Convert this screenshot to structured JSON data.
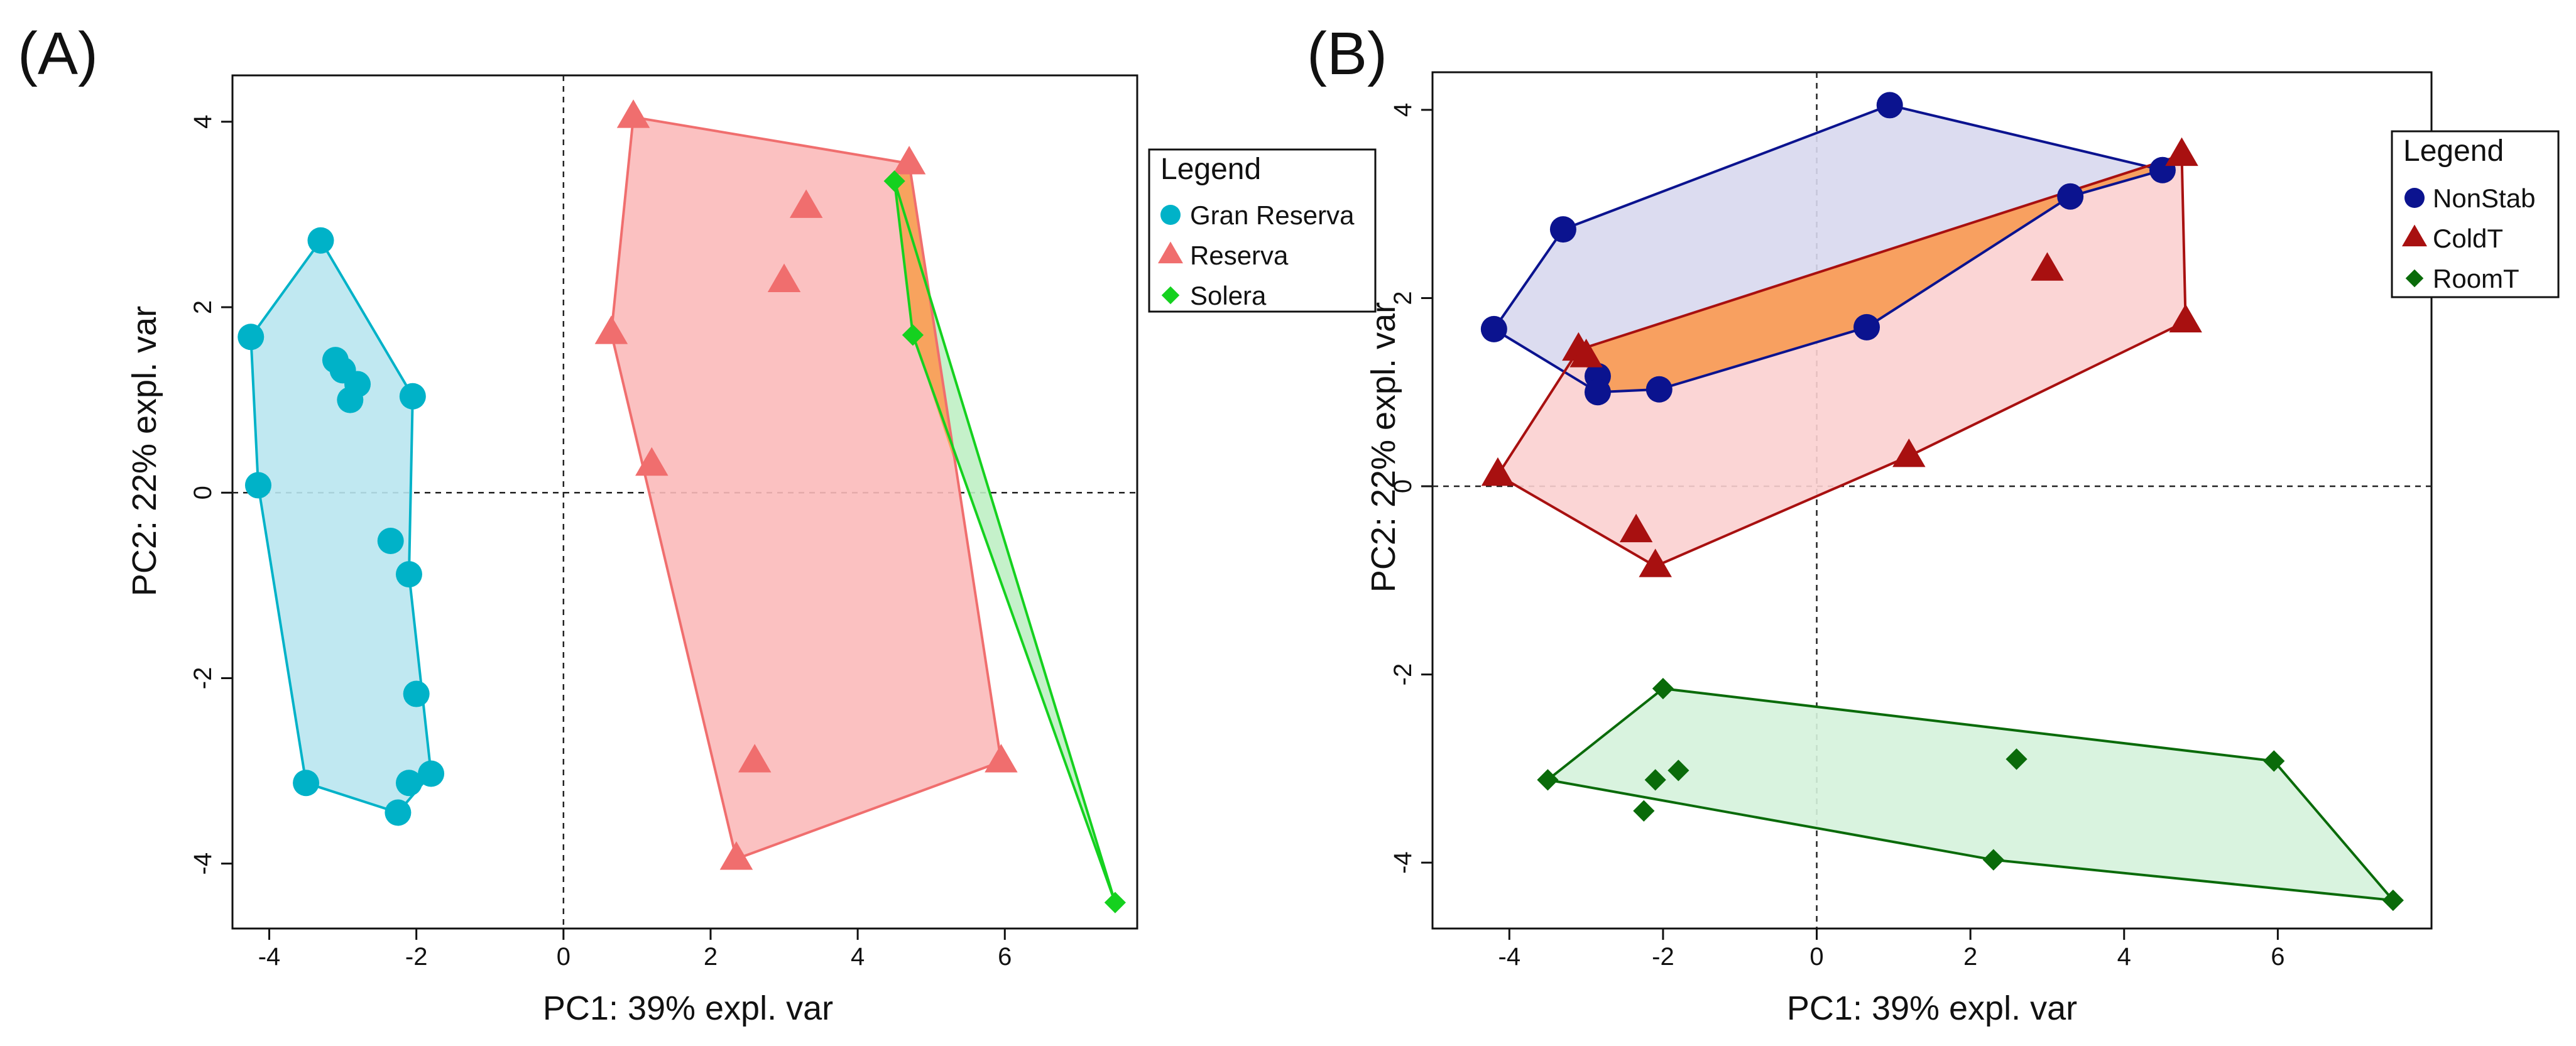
{
  "figure": {
    "panels": [
      "(A)",
      "(B)"
    ]
  },
  "colors": {
    "gran_reserva": "#00b2c8",
    "gran_reserva_fill": "#b9e6f0",
    "reserva": "#f06e6e",
    "reserva_fill": "#fbbaba",
    "solera": "#15d11f",
    "solera_fill": "#bfefc4",
    "overlap_orange": "#f8a35e",
    "nonstab": "#0b138f",
    "nonstab_fill": "#d8d8ee",
    "coldt": "#a81010",
    "coldt_fill": "#fbd0d0",
    "roomt": "#0a6b0a",
    "roomt_fill": "#d5f2dc",
    "overlap_b": "#f8a060"
  },
  "chart_data": [
    {
      "type": "scatter",
      "panel_label": "(A)",
      "xlabel": "PC1: 39% expl. var",
      "ylabel": "PC2: 22% expl. var",
      "xlim": [
        -4.5,
        7.8
      ],
      "ylim": [
        -4.7,
        4.5
      ],
      "xticks": [
        -4,
        -2,
        0,
        2,
        4,
        6
      ],
      "yticks": [
        -4,
        -2,
        0,
        2,
        4
      ],
      "xtick_labels": [
        "-4",
        "-2",
        "0",
        "2",
        "4",
        "6"
      ],
      "ytick_labels": [
        "-4",
        "-2",
        "0",
        "2",
        "4"
      ],
      "legend_title": "Legend",
      "legend_position": "right",
      "series": [
        {
          "name": "Gran Reserva",
          "marker": "circle",
          "color": "gran_reserva",
          "fill": "gran_reserva_fill",
          "points": [
            [
              -3.3,
              2.72
            ],
            [
              -4.25,
              1.68
            ],
            [
              -3.1,
              1.43
            ],
            [
              -3.0,
              1.32
            ],
            [
              -2.8,
              1.17
            ],
            [
              -2.9,
              1.0
            ],
            [
              -2.05,
              1.04
            ],
            [
              -4.15,
              0.08
            ],
            [
              -2.35,
              -0.52
            ],
            [
              -2.1,
              -0.88
            ],
            [
              -2.0,
              -2.17
            ],
            [
              -1.8,
              -3.03
            ],
            [
              -2.1,
              -3.13
            ],
            [
              -3.5,
              -3.13
            ],
            [
              -2.25,
              -3.45
            ]
          ],
          "hull": [
            [
              -4.25,
              1.68
            ],
            [
              -3.3,
              2.72
            ],
            [
              -2.05,
              1.04
            ],
            [
              -2.1,
              -0.88
            ],
            [
              -1.8,
              -3.03
            ],
            [
              -2.25,
              -3.45
            ],
            [
              -3.5,
              -3.13
            ],
            [
              -4.15,
              0.08
            ]
          ]
        },
        {
          "name": "Reserva",
          "marker": "triangle",
          "color": "reserva",
          "fill": "reserva_fill",
          "points": [
            [
              0.95,
              4.05
            ],
            [
              4.7,
              3.55
            ],
            [
              3.3,
              3.08
            ],
            [
              3.0,
              2.28
            ],
            [
              0.65,
              1.72
            ],
            [
              1.2,
              0.3
            ],
            [
              2.6,
              -2.9
            ],
            [
              5.95,
              -2.9
            ],
            [
              2.35,
              -3.95
            ]
          ],
          "hull": [
            [
              0.95,
              4.05
            ],
            [
              4.7,
              3.55
            ],
            [
              5.95,
              -2.9
            ],
            [
              2.35,
              -3.95
            ],
            [
              0.65,
              1.72
            ]
          ]
        },
        {
          "name": "Solera",
          "marker": "diamond",
          "color": "solera",
          "fill": "solera_fill",
          "points": [
            [
              4.5,
              3.36
            ],
            [
              4.75,
              1.7
            ],
            [
              7.5,
              -4.42
            ]
          ],
          "hull": [
            [
              4.5,
              3.36
            ],
            [
              4.75,
              1.7
            ],
            [
              7.5,
              -4.42
            ]
          ]
        }
      ]
    },
    {
      "type": "scatter",
      "panel_label": "(B)",
      "xlabel": "PC1: 39% expl. var",
      "ylabel": "PC2: 22% expl. var",
      "xlim": [
        -5.0,
        8.0
      ],
      "ylim": [
        -4.7,
        4.4
      ],
      "xticks": [
        -4,
        -2,
        0,
        2,
        4,
        6
      ],
      "yticks": [
        -4,
        -2,
        0,
        2,
        4
      ],
      "xtick_labels": [
        "-4",
        "-2",
        "0",
        "2",
        "4",
        "6"
      ],
      "ytick_labels": [
        "-4",
        "-2",
        "0",
        "2",
        "4"
      ],
      "legend_title": "Legend",
      "legend_position": "right",
      "series": [
        {
          "name": "NonStab",
          "marker": "circle",
          "color": "nonstab",
          "fill": "nonstab_fill",
          "points": [
            [
              0.95,
              4.05
            ],
            [
              -3.3,
              2.73
            ],
            [
              4.5,
              3.36
            ],
            [
              3.3,
              3.08
            ],
            [
              -4.2,
              1.67
            ],
            [
              0.65,
              1.69
            ],
            [
              -2.85,
              1.17
            ],
            [
              -2.85,
              1.0
            ],
            [
              -2.05,
              1.03
            ]
          ],
          "hull": [
            [
              -4.2,
              1.67
            ],
            [
              -3.3,
              2.73
            ],
            [
              0.95,
              4.05
            ],
            [
              4.5,
              3.36
            ],
            [
              3.3,
              3.08
            ],
            [
              0.65,
              1.69
            ],
            [
              -2.05,
              1.03
            ],
            [
              -2.85,
              1.0
            ]
          ]
        },
        {
          "name": "ColdT",
          "marker": "triangle",
          "color": "coldt",
          "fill": "coldt_fill",
          "points": [
            [
              4.75,
              3.52
            ],
            [
              3.0,
              2.3
            ],
            [
              4.8,
              1.75
            ],
            [
              -3.1,
              1.45
            ],
            [
              -3.0,
              1.38
            ],
            [
              1.2,
              0.32
            ],
            [
              -4.15,
              0.12
            ],
            [
              -2.35,
              -0.48
            ],
            [
              -2.1,
              -0.85
            ]
          ],
          "hull": [
            [
              4.75,
              3.52
            ],
            [
              4.8,
              1.75
            ],
            [
              1.2,
              0.32
            ],
            [
              -2.1,
              -0.85
            ],
            [
              -4.15,
              0.12
            ],
            [
              -3.1,
              1.45
            ]
          ]
        },
        {
          "name": "RoomT",
          "marker": "diamond",
          "color": "roomt",
          "fill": "roomt_fill",
          "points": [
            [
              -2.0,
              -2.15
            ],
            [
              2.6,
              -2.9
            ],
            [
              5.95,
              -2.92
            ],
            [
              -1.8,
              -3.02
            ],
            [
              -2.1,
              -3.12
            ],
            [
              -3.5,
              -3.12
            ],
            [
              -2.25,
              -3.45
            ],
            [
              2.3,
              -3.97
            ],
            [
              7.5,
              -4.4
            ]
          ],
          "hull": [
            [
              -2.0,
              -2.15
            ],
            [
              5.95,
              -2.92
            ],
            [
              7.5,
              -4.4
            ],
            [
              2.3,
              -3.97
            ],
            [
              -3.5,
              -3.12
            ]
          ]
        }
      ],
      "overlap_regions": [
        {
          "fill": "overlap_b",
          "points": [
            [
              -3.1,
              1.45
            ],
            [
              4.75,
              3.52
            ],
            [
              4.5,
              3.36
            ],
            [
              3.3,
              3.08
            ],
            [
              0.65,
              1.69
            ],
            [
              -2.05,
              1.03
            ],
            [
              -2.85,
              1.0
            ]
          ]
        }
      ]
    }
  ]
}
